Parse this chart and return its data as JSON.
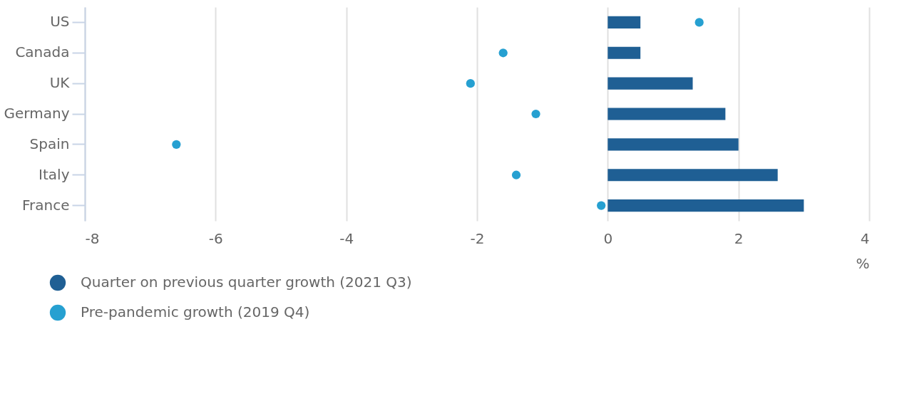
{
  "chart_data": {
    "type": "bar",
    "orientation": "horizontal",
    "categories": [
      "US",
      "Canada",
      "UK",
      "Germany",
      "Spain",
      "Italy",
      "France"
    ],
    "series": [
      {
        "name": "Quarter on previous quarter growth (2021 Q3)",
        "type": "bar",
        "color": "#1f5f94",
        "values": [
          0.5,
          0.5,
          1.3,
          1.8,
          2.0,
          2.6,
          3.0
        ]
      },
      {
        "name": "Pre-pandemic growth (2019 Q4)",
        "type": "scatter",
        "color": "#26a0d1",
        "values": [
          1.4,
          -1.6,
          -2.1,
          -1.1,
          -6.6,
          -1.4,
          -0.1
        ]
      }
    ],
    "xlim": [
      -8,
      4
    ],
    "xticks": [
      -8,
      -6,
      -4,
      -2,
      0,
      2,
      4
    ],
    "xlabel": "%",
    "grid": "x",
    "legend": "bottom left",
    "marker": "circle"
  }
}
